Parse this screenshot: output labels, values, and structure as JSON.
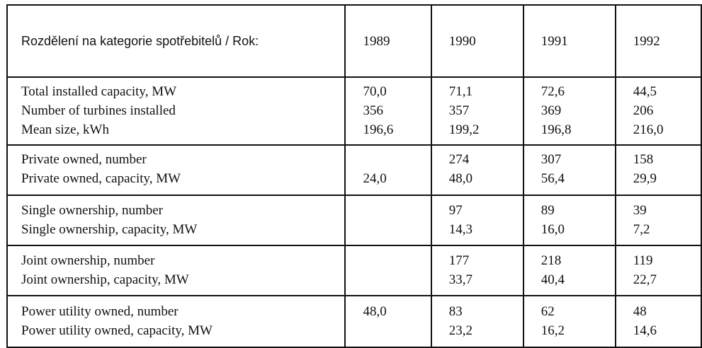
{
  "table": {
    "header": {
      "label": "Rozdělení na kategorie spotřebitelů / Rok:",
      "years": [
        "1989",
        "1990",
        "1991",
        "1992"
      ]
    },
    "groups": [
      {
        "rows": [
          {
            "label": "Total installed capacity, MW",
            "values": [
              "70,0",
              "71,1",
              "72,6",
              "44,5"
            ]
          },
          {
            "label": "Number of turbines installed",
            "values": [
              "356",
              "357",
              "369",
              "206"
            ]
          },
          {
            "label": "Mean size, kWh",
            "values": [
              "196,6",
              "199,2",
              "196,8",
              "216,0"
            ]
          }
        ]
      },
      {
        "rows": [
          {
            "label": "Private owned, number",
            "values": [
              "",
              "274",
              "307",
              "158"
            ]
          },
          {
            "label": "Private owned, capacity, MW",
            "values": [
              "24,0",
              "48,0",
              "56,4",
              "29,9"
            ]
          }
        ]
      },
      {
        "rows": [
          {
            "label": "Single ownership, number",
            "values": [
              "",
              "97",
              "89",
              "39"
            ]
          },
          {
            "label": "Single ownership, capacity, MW",
            "values": [
              "",
              "14,3",
              "16,0",
              "7,2"
            ]
          }
        ]
      },
      {
        "rows": [
          {
            "label": "Joint ownership, number",
            "values": [
              "",
              "177",
              "218",
              "119"
            ]
          },
          {
            "label": "Joint ownership, capacity, MW",
            "values": [
              "",
              "33,7",
              "40,4",
              "22,7"
            ]
          }
        ]
      },
      {
        "rows": [
          {
            "label": "Power utility owned, number",
            "values": [
              "48,0",
              "83",
              "62",
              "48"
            ]
          },
          {
            "label": "Power utility owned, capacity, MW",
            "values": [
              "",
              "23,2",
              "16,2",
              "14,6"
            ]
          }
        ]
      }
    ]
  }
}
